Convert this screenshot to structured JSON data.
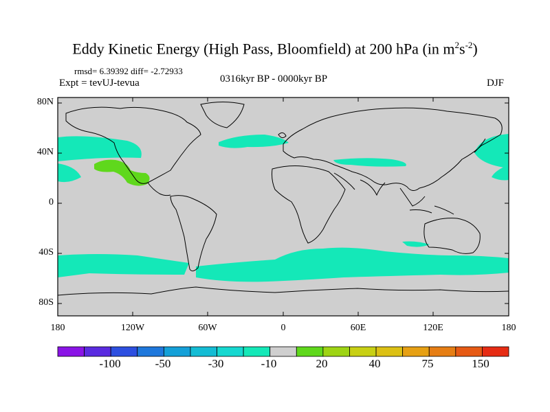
{
  "title": {
    "main": "Eddy Kinetic Energy (High Pass, Bloomfield) at 200 hPa (in m",
    "sup1": "2",
    "mid": "s",
    "sup2": "-2",
    "end": ")"
  },
  "stats": "rmsd= 6.39392  diff= -2.72933",
  "expt": "Expt = tevUJ-tevua",
  "period": "0316kyr BP - 0000kyr BP",
  "season": "DJF",
  "lat_labels": [
    "80N",
    "40N",
    "0",
    "40S",
    "80S"
  ],
  "lon_labels": [
    "180",
    "120W",
    "60W",
    "0",
    "60E",
    "120E",
    "180"
  ],
  "colorbar": {
    "colors": [
      "#8a14e6",
      "#5a2be0",
      "#2d4fe0",
      "#1f78dc",
      "#14a0d8",
      "#14bcd4",
      "#16d8d0",
      "#14e8b8",
      "#cfcfcf",
      "#5fd81c",
      "#9ed414",
      "#c8d014",
      "#dcc014",
      "#e6a014",
      "#e67e14",
      "#e65a14",
      "#e62c14"
    ],
    "labels": [
      "-100",
      "-50",
      "-30",
      "-10",
      "20",
      "40",
      "75",
      "150"
    ]
  },
  "colors": {
    "background_shade": "#cfcfcf",
    "negative_band": "#14e8b8",
    "negative_strong": "#16d8d0",
    "positive_band": "#5fd81c"
  }
}
